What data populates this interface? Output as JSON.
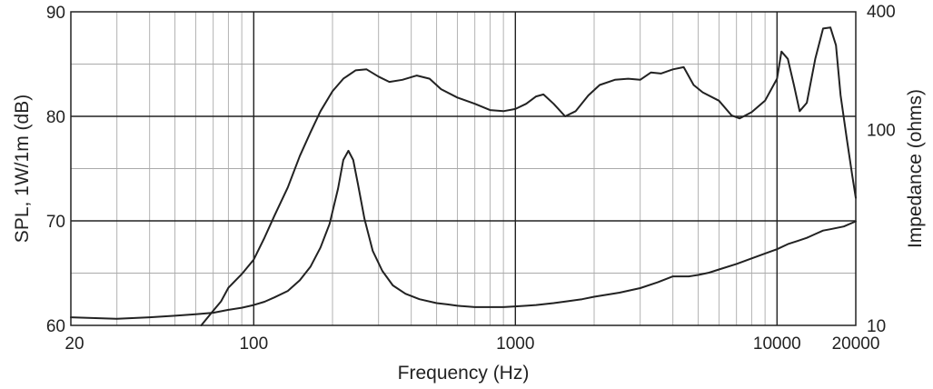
{
  "chart_data": {
    "type": "line",
    "title": "",
    "xlabel": "Frequency (Hz)",
    "ylabel_left": "SPL, 1W/1m (dB)",
    "ylabel_right": "Impedance (ohms)",
    "x_scale": "log",
    "xlim": [
      20,
      20000
    ],
    "ylim_left": [
      60,
      90
    ],
    "ylim_right": [
      10,
      400
    ],
    "y_right_scale": "log",
    "x_ticks": [
      "20",
      "100",
      "1000",
      "10000",
      "20000"
    ],
    "y_left_ticks": [
      "60",
      "70",
      "80",
      "90"
    ],
    "y_right_ticks": [
      "10",
      "100",
      "400"
    ],
    "grid": true,
    "line_color": "#222222",
    "series": [
      {
        "axis": "left",
        "x": [
          63,
          70,
          75,
          80,
          90,
          100,
          110,
          120,
          135,
          150,
          165,
          180,
          200,
          220,
          245,
          270,
          300,
          330,
          370,
          420,
          470,
          520,
          600,
          700,
          800,
          900,
          1000,
          1100,
          1200,
          1280,
          1400,
          1550,
          1700,
          1900,
          2100,
          2400,
          2700,
          3000,
          3300,
          3600,
          4000,
          4400,
          4800,
          5200,
          6000,
          6700,
          7200,
          8000,
          9000,
          10000,
          10400,
          11000,
          11600,
          12200,
          13000,
          14000,
          15000,
          16000,
          16800,
          17500,
          18500,
          19400,
          20000
        ],
        "y": [
          60,
          61.4,
          62.3,
          63.6,
          64.9,
          66.3,
          68.4,
          70.5,
          73.2,
          76.2,
          78.5,
          80.5,
          82.4,
          83.6,
          84.4,
          84.5,
          83.8,
          83.3,
          83.5,
          83.9,
          83.6,
          82.6,
          81.8,
          81.2,
          80.6,
          80.5,
          80.7,
          81.2,
          81.9,
          82.1,
          81.2,
          80.0,
          80.5,
          82.0,
          83.0,
          83.5,
          83.6,
          83.5,
          84.2,
          84.1,
          84.5,
          84.7,
          83.0,
          82.3,
          81.5,
          80.1,
          79.8,
          80.4,
          81.5,
          83.6,
          86.2,
          85.5,
          83.0,
          80.5,
          81.3,
          85.5,
          88.4,
          88.5,
          86.8,
          82.0,
          77.8,
          74.3,
          72.2
        ]
      },
      {
        "axis": "right",
        "x": [
          20,
          30,
          40,
          50,
          60,
          70,
          80,
          90,
          100,
          110,
          120,
          135,
          150,
          165,
          180,
          195,
          210,
          220,
          230,
          240,
          250,
          265,
          285,
          310,
          340,
          380,
          430,
          500,
          550,
          600,
          700,
          800,
          900,
          1000,
          1100,
          1200,
          1400,
          1600,
          1800,
          2000,
          2500,
          3000,
          3500,
          4000,
          4300,
          4600,
          5000,
          5500,
          6000,
          7000,
          8000,
          9000,
          10000,
          11000,
          12000,
          13000,
          14000,
          15000,
          16000,
          18000,
          20000
        ],
        "y": [
          11.0,
          10.8,
          11.0,
          11.2,
          11.4,
          11.6,
          12.0,
          12.3,
          12.7,
          13.2,
          13.9,
          15.0,
          17.0,
          20.0,
          25.0,
          33.0,
          50.0,
          70.0,
          78.0,
          70.0,
          53.0,
          35.0,
          24.0,
          19.0,
          16.0,
          14.5,
          13.6,
          13.0,
          12.8,
          12.6,
          12.4,
          12.4,
          12.4,
          12.5,
          12.6,
          12.7,
          13.0,
          13.3,
          13.6,
          14.0,
          14.7,
          15.5,
          16.6,
          17.8,
          17.8,
          17.8,
          18.1,
          18.6,
          19.3,
          20.6,
          22.0,
          23.3,
          24.5,
          26.0,
          27.0,
          28.0,
          29.3,
          30.5,
          31.0,
          32.0,
          34.0
        ]
      }
    ]
  }
}
